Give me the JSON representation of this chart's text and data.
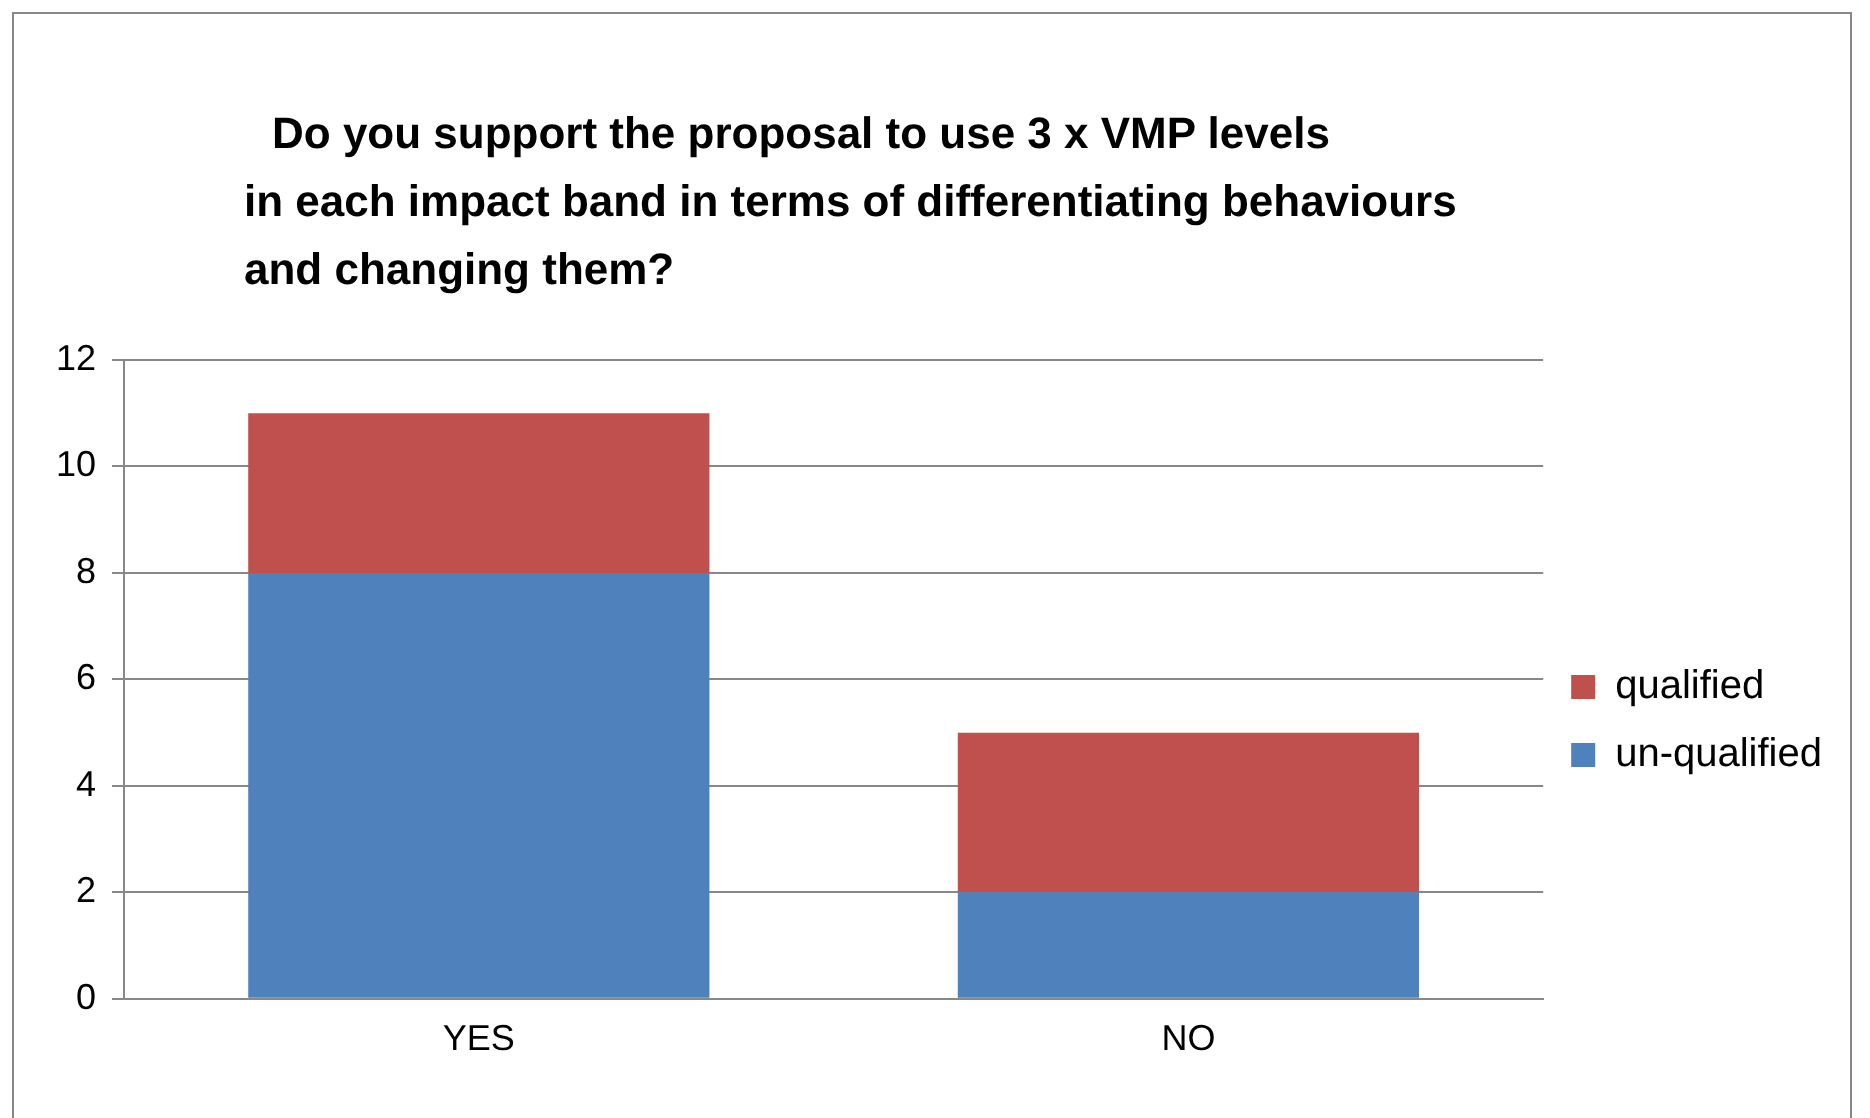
{
  "chart_data": {
    "type": "bar",
    "title": "Do you support the proposal to use 3 x VMP levels\nin each impact band in terms of differentiating behaviours\nand changing them?",
    "categories": [
      "YES",
      "NO"
    ],
    "series": [
      {
        "name": "un-qualified",
        "color": "#4f81bd",
        "values": [
          8,
          2
        ]
      },
      {
        "name": "qualified",
        "color": "#c0504d",
        "values": [
          3,
          3
        ]
      }
    ],
    "stacked": true,
    "ylim": [
      0,
      12
    ],
    "yticks": [
      0,
      2,
      4,
      6,
      8,
      10,
      12
    ],
    "grid": "y",
    "legend": "right"
  }
}
